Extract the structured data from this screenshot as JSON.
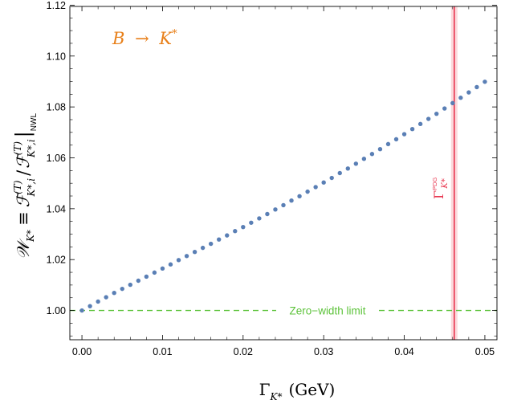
{
  "chart_data": {
    "type": "scatter",
    "x_tick_labels": [
      "0.00",
      "0.01",
      "0.02",
      "0.03",
      "0.04",
      "0.05"
    ],
    "y_tick_labels": [
      "1.00",
      "1.02",
      "1.04",
      "1.06",
      "1.08",
      "1.10",
      "1.12"
    ],
    "xlim": [
      -0.0015,
      0.0515
    ],
    "ylim": [
      0.9885,
      1.1195
    ],
    "grid": false,
    "x_axis_label": {
      "symbol": "Γ",
      "subscript": "K*",
      "unit": "(GeV)"
    },
    "y_axis_label": {
      "lhs": "𝒲",
      "lhs_subscript": "K*",
      "eq": "≡",
      "numerator": "ℱ",
      "numerator_sup": "(T)",
      "numerator_sub": "K*,i",
      "slash": "/",
      "denominator": "ℱ",
      "denominator_sup": "(T)",
      "denominator_sub": "K*,i",
      "bar_sub": "NWL"
    },
    "annotation_process": {
      "text_left": "B",
      "arrow": "→",
      "text_right": "K*",
      "color": "#e8801a"
    },
    "zero_width_line": {
      "y": 1.0,
      "label": "Zero−width limit",
      "color": "#5dc33b"
    },
    "pdg_band": {
      "center": 0.0462,
      "low": 0.0458,
      "high": 0.0466,
      "line_color": "#e8364f",
      "band_color": "#fbd9dc",
      "label_symbol": "Γ",
      "label_sub": "K*",
      "label_sup": "PDG"
    },
    "series": [
      {
        "color": "#5a7fb5",
        "x": [
          0.0,
          0.001,
          0.002,
          0.003,
          0.004,
          0.005,
          0.006,
          0.007,
          0.008,
          0.009,
          0.01,
          0.011,
          0.012,
          0.013,
          0.014,
          0.015,
          0.016,
          0.017,
          0.018,
          0.019,
          0.02,
          0.021,
          0.022,
          0.023,
          0.024,
          0.025,
          0.026,
          0.027,
          0.028,
          0.029,
          0.03,
          0.031,
          0.032,
          0.033,
          0.034,
          0.035,
          0.036,
          0.037,
          0.038,
          0.039,
          0.04,
          0.041,
          0.042,
          0.043,
          0.044,
          0.045,
          0.046,
          0.047,
          0.048,
          0.049,
          0.05
        ],
        "y": [
          1.0,
          1.0017,
          1.0035,
          1.0052,
          1.0069,
          1.0085,
          1.0101,
          1.0117,
          1.0133,
          1.0149,
          1.0165,
          1.0181,
          1.0198,
          1.0214,
          1.023,
          1.0246,
          1.0262,
          1.0279,
          1.0295,
          1.0312,
          1.0328,
          1.0345,
          1.0362,
          1.0379,
          1.0397,
          1.0414,
          1.0432,
          1.0449,
          1.0467,
          1.0485,
          1.0503,
          1.0521,
          1.054,
          1.0558,
          1.0577,
          1.0596,
          1.0615,
          1.0634,
          1.0654,
          1.0673,
          1.0693,
          1.0713,
          1.0733,
          1.0753,
          1.0773,
          1.0794,
          1.0815,
          1.0836,
          1.0857,
          1.0878,
          1.0899
        ]
      }
    ]
  }
}
